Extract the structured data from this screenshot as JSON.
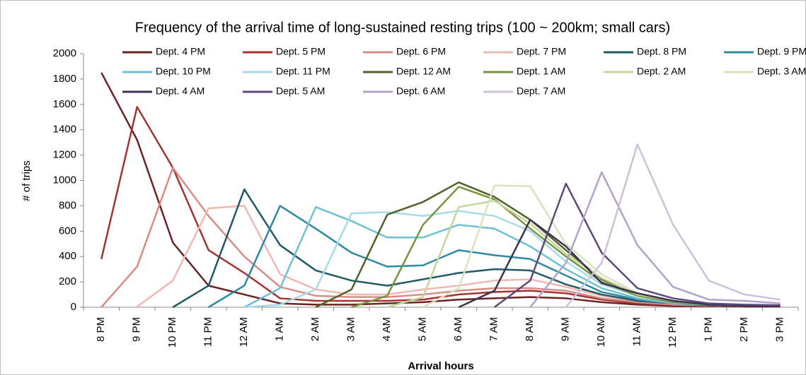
{
  "chart_data": {
    "type": "line",
    "title": "Frequency of the arrival time of long-sustained resting trips (100 ~ 200km; small cars)",
    "x_label": "Arrival hours",
    "y_label": "# of trips",
    "categories": [
      "8 PM",
      "9 PM",
      "10 PM",
      "11 PM",
      "12 AM",
      "1 AM",
      "2 AM",
      "3 AM",
      "4 AM",
      "5 AM",
      "6 AM",
      "7 AM",
      "8 AM",
      "9 AM",
      "10 AM",
      "11 AM",
      "12 PM",
      "1 PM",
      "2 PM",
      "3 PM"
    ],
    "ylim": [
      0,
      2000
    ],
    "yticks": [
      0,
      200,
      400,
      600,
      800,
      1000,
      1200,
      1400,
      1600,
      1800,
      2000
    ],
    "grid": false,
    "series": [
      {
        "name": "Dept. 4 PM",
        "color": "#6b2323",
        "values": [
          1850,
          1320,
          510,
          170,
          100,
          30,
          20,
          20,
          30,
          40,
          60,
          70,
          80,
          70,
          40,
          20,
          10,
          10,
          5,
          5
        ]
      },
      {
        "name": "Dept. 5 PM",
        "color": "#a3342f",
        "values": [
          380,
          1580,
          1100,
          450,
          270,
          70,
          50,
          50,
          50,
          60,
          100,
          120,
          130,
          110,
          60,
          30,
          20,
          10,
          10,
          10
        ]
      },
      {
        "name": "Dept. 6 PM",
        "color": "#d98c86",
        "values": [
          0,
          320,
          1100,
          720,
          400,
          160,
          90,
          80,
          80,
          100,
          130,
          150,
          150,
          130,
          70,
          40,
          20,
          15,
          10,
          10
        ]
      },
      {
        "name": "Dept. 7 PM",
        "color": "#f0b8b2",
        "values": [
          null,
          5,
          210,
          780,
          800,
          260,
          140,
          100,
          100,
          140,
          170,
          210,
          220,
          160,
          90,
          50,
          30,
          20,
          10,
          10
        ]
      },
      {
        "name": "Dept. 8 PM",
        "color": "#215a66",
        "values": [
          null,
          null,
          0,
          170,
          930,
          490,
          290,
          210,
          170,
          220,
          270,
          300,
          290,
          180,
          100,
          50,
          30,
          15,
          10,
          10
        ]
      },
      {
        "name": "Dept. 9 PM",
        "color": "#2e8aa0",
        "values": [
          null,
          null,
          null,
          0,
          170,
          800,
          620,
          430,
          320,
          330,
          450,
          410,
          380,
          250,
          120,
          60,
          30,
          20,
          10,
          10
        ]
      },
      {
        "name": "Dept. 10 PM",
        "color": "#6fc0d0",
        "values": [
          null,
          null,
          null,
          null,
          0,
          150,
          790,
          680,
          550,
          550,
          650,
          620,
          480,
          300,
          150,
          70,
          30,
          20,
          10,
          10
        ]
      },
      {
        "name": "Dept. 11 PM",
        "color": "#a8dbe8",
        "values": [
          null,
          null,
          null,
          null,
          0,
          20,
          140,
          740,
          750,
          720,
          760,
          720,
          600,
          360,
          180,
          90,
          40,
          20,
          10,
          10
        ]
      },
      {
        "name": "Dept. 12 AM",
        "color": "#4f6228",
        "values": [
          null,
          null,
          null,
          null,
          null,
          null,
          0,
          140,
          730,
          830,
          985,
          870,
          690,
          450,
          220,
          100,
          50,
          20,
          10,
          10
        ]
      },
      {
        "name": "Dept. 1 AM",
        "color": "#77933c",
        "values": [
          null,
          null,
          null,
          null,
          null,
          null,
          null,
          0,
          90,
          650,
          950,
          850,
          620,
          400,
          200,
          90,
          40,
          20,
          10,
          10
        ]
      },
      {
        "name": "Dept. 2 AM",
        "color": "#c3d69b",
        "values": [
          null,
          null,
          null,
          null,
          null,
          null,
          null,
          null,
          0,
          80,
          790,
          840,
          660,
          420,
          230,
          100,
          50,
          20,
          10,
          10
        ]
      },
      {
        "name": "Dept. 3 AM",
        "color": "#d7e4bd",
        "values": [
          null,
          null,
          null,
          null,
          null,
          null,
          null,
          null,
          null,
          0,
          150,
          960,
          955,
          500,
          260,
          110,
          50,
          20,
          10,
          10
        ]
      },
      {
        "name": "Dept. 4 AM",
        "color": "#3f3151",
        "values": [
          null,
          null,
          null,
          null,
          null,
          null,
          null,
          null,
          null,
          null,
          0,
          130,
          690,
          480,
          190,
          110,
          50,
          20,
          10,
          10
        ]
      },
      {
        "name": "Dept. 5 AM",
        "color": "#5f497a",
        "values": [
          null,
          null,
          null,
          null,
          null,
          null,
          null,
          null,
          null,
          null,
          null,
          0,
          210,
          975,
          430,
          150,
          70,
          30,
          20,
          15
        ]
      },
      {
        "name": "Dept. 6 AM",
        "color": "#b3a2c7",
        "values": [
          null,
          null,
          null,
          null,
          null,
          null,
          null,
          null,
          null,
          null,
          null,
          null,
          0,
          350,
          1065,
          490,
          160,
          60,
          50,
          30
        ]
      },
      {
        "name": "Dept. 7 AM",
        "color": "#ccc1da",
        "values": [
          null,
          null,
          null,
          null,
          null,
          null,
          null,
          null,
          null,
          null,
          null,
          null,
          null,
          0,
          350,
          1285,
          650,
          210,
          100,
          60
        ]
      }
    ]
  }
}
